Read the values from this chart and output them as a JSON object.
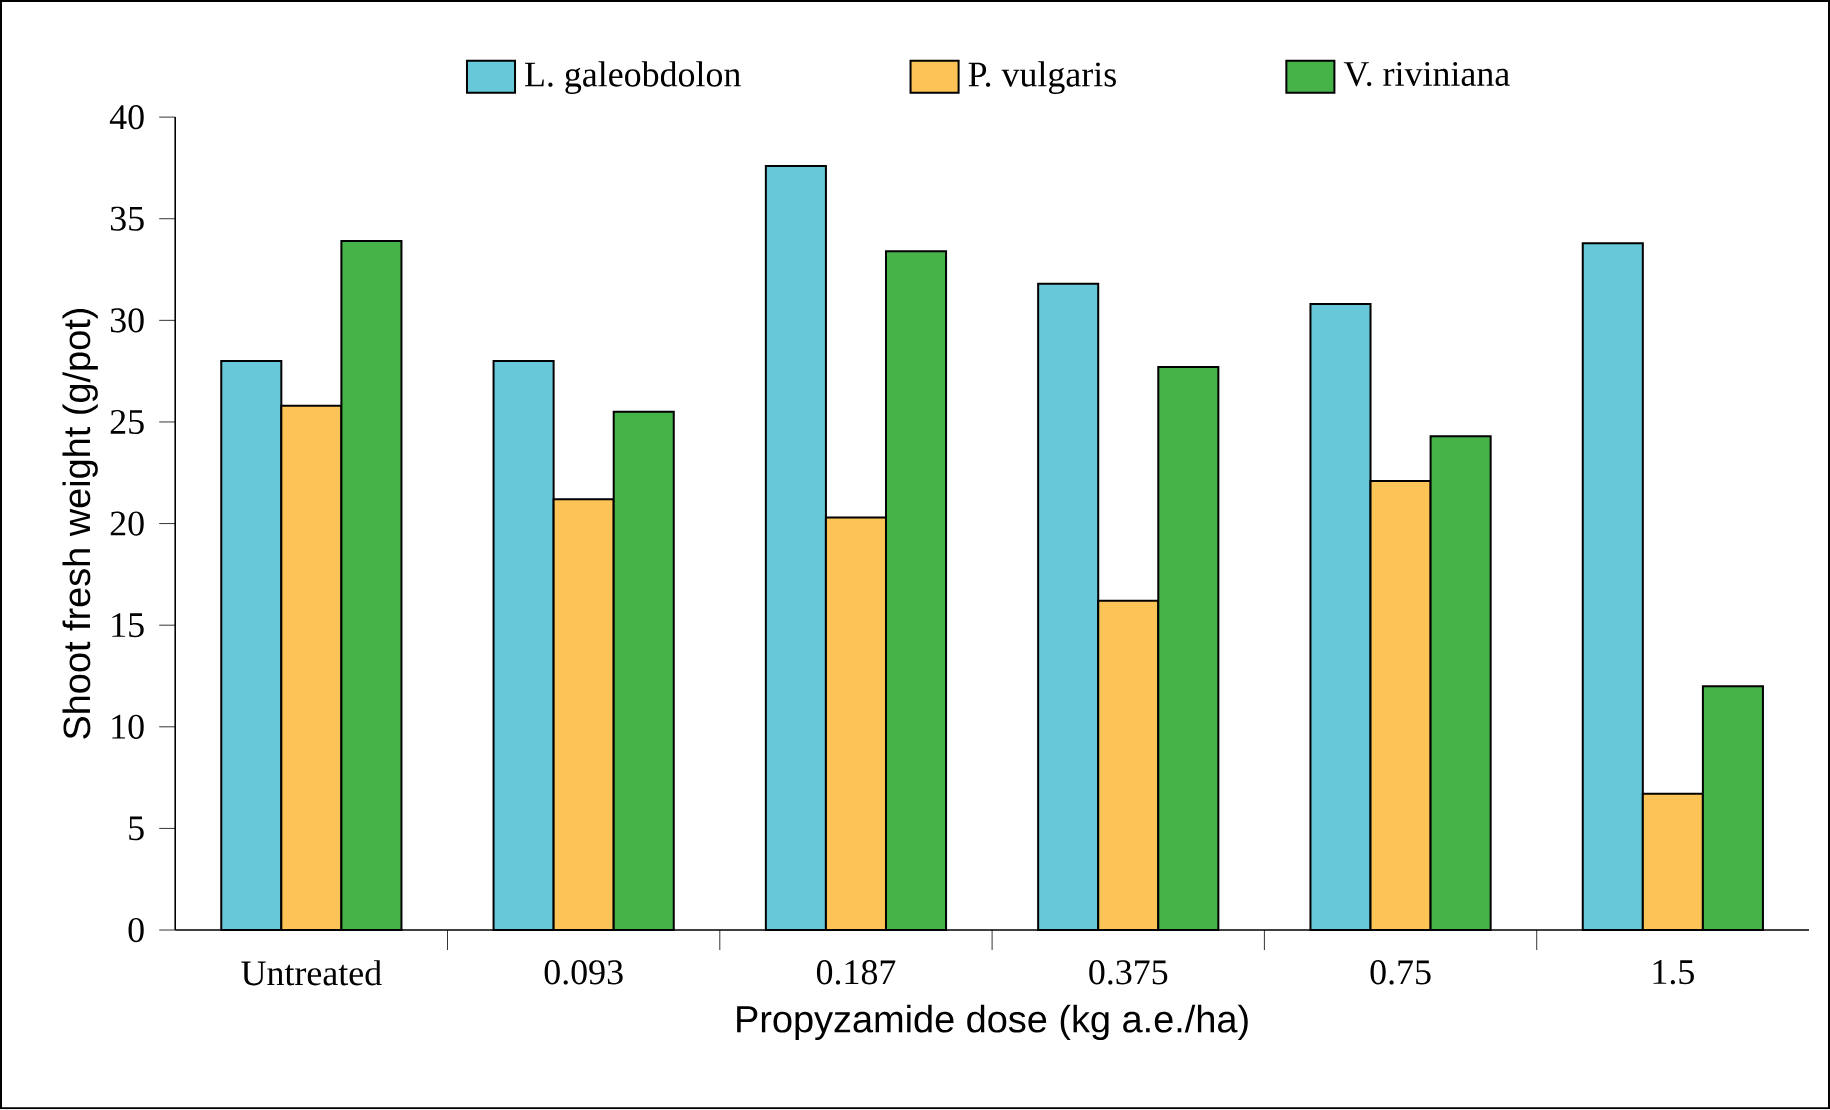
{
  "chart_data": {
    "type": "bar",
    "xlabel": "Propyzamide dose (kg a.e./ha)",
    "ylabel": "Shoot fresh weight (g/pot)",
    "categories": [
      "Untreated",
      "0.093",
      "0.187",
      "0.375",
      "0.75",
      "1.5"
    ],
    "series": [
      {
        "name": "L. galeobdolon",
        "color": "#66c8d8",
        "values": [
          28.0,
          28.0,
          37.6,
          31.8,
          30.8,
          33.8
        ]
      },
      {
        "name": "P. vulgaris",
        "color": "#fcc456",
        "values": [
          25.8,
          21.2,
          20.3,
          16.2,
          22.1,
          6.7
        ]
      },
      {
        "name": "V. riviniana",
        "color": "#46b348",
        "values": [
          33.9,
          25.5,
          33.4,
          27.7,
          24.3,
          12.0
        ]
      }
    ],
    "ylim": [
      0,
      40
    ],
    "yticks": [
      0,
      5,
      10,
      15,
      20,
      25,
      30,
      35,
      40
    ],
    "grid": false,
    "legend": "top"
  }
}
